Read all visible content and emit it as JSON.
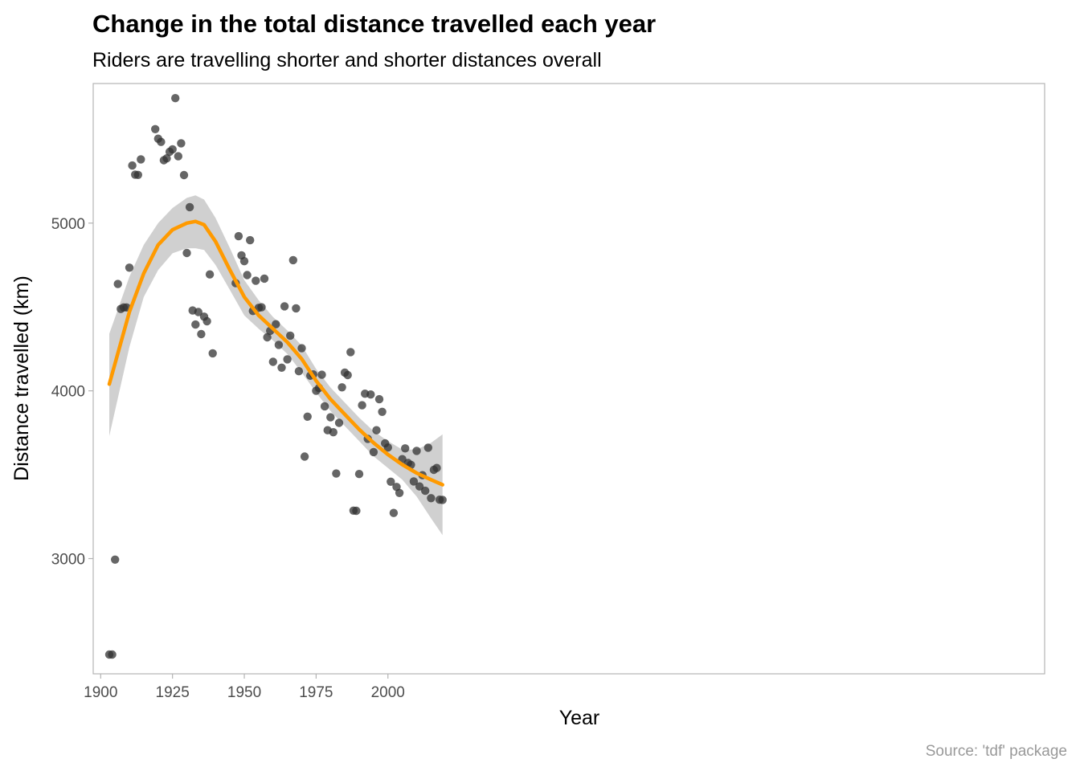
{
  "chart_data": {
    "type": "scatter",
    "title": "Change in the total distance travelled each year",
    "subtitle": "Riders are travelling shorter and shorter distances overall",
    "xlabel": "Year",
    "ylabel": "Distance travelled (km)",
    "caption": "Source: 'tdf' package",
    "xlim": [
      1897.4,
      2222.0
    ],
    "ylim": [
      2313,
      5832
    ],
    "x_ticks": [
      1900,
      1925,
      1950,
      1975,
      2000
    ],
    "y_ticks": [
      3000,
      4000,
      5000
    ],
    "grid": false,
    "legend": "none",
    "colors": {
      "points": "#333333",
      "smooth_line": "#ff9a00",
      "confidence_band": "#bebebe",
      "panel_border": "#b3b3b3"
    },
    "points": [
      {
        "x": 1903,
        "y": 2428
      },
      {
        "x": 1904,
        "y": 2428
      },
      {
        "x": 1905,
        "y": 2994
      },
      {
        "x": 1906,
        "y": 4637
      },
      {
        "x": 1907,
        "y": 4488
      },
      {
        "x": 1908,
        "y": 4497
      },
      {
        "x": 1909,
        "y": 4497
      },
      {
        "x": 1910,
        "y": 4734
      },
      {
        "x": 1911,
        "y": 5343
      },
      {
        "x": 1912,
        "y": 5289
      },
      {
        "x": 1913,
        "y": 5287
      },
      {
        "x": 1914,
        "y": 5380
      },
      {
        "x": 1919,
        "y": 5560
      },
      {
        "x": 1920,
        "y": 5503
      },
      {
        "x": 1921,
        "y": 5484
      },
      {
        "x": 1922,
        "y": 5375
      },
      {
        "x": 1923,
        "y": 5386
      },
      {
        "x": 1924,
        "y": 5425
      },
      {
        "x": 1925,
        "y": 5440
      },
      {
        "x": 1926,
        "y": 5745
      },
      {
        "x": 1927,
        "y": 5398
      },
      {
        "x": 1928,
        "y": 5476
      },
      {
        "x": 1929,
        "y": 5286
      },
      {
        "x": 1930,
        "y": 4822
      },
      {
        "x": 1931,
        "y": 5095
      },
      {
        "x": 1932,
        "y": 4479
      },
      {
        "x": 1933,
        "y": 4395
      },
      {
        "x": 1934,
        "y": 4470
      },
      {
        "x": 1935,
        "y": 4338
      },
      {
        "x": 1936,
        "y": 4442
      },
      {
        "x": 1937,
        "y": 4415
      },
      {
        "x": 1938,
        "y": 4694
      },
      {
        "x": 1939,
        "y": 4224
      },
      {
        "x": 1947,
        "y": 4642
      },
      {
        "x": 1948,
        "y": 4922
      },
      {
        "x": 1949,
        "y": 4808
      },
      {
        "x": 1950,
        "y": 4773
      },
      {
        "x": 1951,
        "y": 4690
      },
      {
        "x": 1952,
        "y": 4898
      },
      {
        "x": 1953,
        "y": 4476
      },
      {
        "x": 1954,
        "y": 4656
      },
      {
        "x": 1955,
        "y": 4495
      },
      {
        "x": 1956,
        "y": 4498
      },
      {
        "x": 1957,
        "y": 4669
      },
      {
        "x": 1958,
        "y": 4319
      },
      {
        "x": 1959,
        "y": 4358
      },
      {
        "x": 1960,
        "y": 4173
      },
      {
        "x": 1961,
        "y": 4397
      },
      {
        "x": 1962,
        "y": 4274
      },
      {
        "x": 1963,
        "y": 4138
      },
      {
        "x": 1964,
        "y": 4504
      },
      {
        "x": 1965,
        "y": 4188
      },
      {
        "x": 1966,
        "y": 4329
      },
      {
        "x": 1967,
        "y": 4779
      },
      {
        "x": 1968,
        "y": 4492
      },
      {
        "x": 1969,
        "y": 4117
      },
      {
        "x": 1970,
        "y": 4254
      },
      {
        "x": 1971,
        "y": 3608
      },
      {
        "x": 1972,
        "y": 3846
      },
      {
        "x": 1973,
        "y": 4090
      },
      {
        "x": 1974,
        "y": 4098
      },
      {
        "x": 1975,
        "y": 4000
      },
      {
        "x": 1976,
        "y": 4017
      },
      {
        "x": 1977,
        "y": 4096
      },
      {
        "x": 1978,
        "y": 3908
      },
      {
        "x": 1979,
        "y": 3765
      },
      {
        "x": 1980,
        "y": 3842
      },
      {
        "x": 1981,
        "y": 3753
      },
      {
        "x": 1982,
        "y": 3507
      },
      {
        "x": 1983,
        "y": 3809
      },
      {
        "x": 1984,
        "y": 4021
      },
      {
        "x": 1985,
        "y": 4109
      },
      {
        "x": 1986,
        "y": 4094
      },
      {
        "x": 1987,
        "y": 4231
      },
      {
        "x": 1988,
        "y": 3286
      },
      {
        "x": 1989,
        "y": 3285
      },
      {
        "x": 1990,
        "y": 3504
      },
      {
        "x": 1991,
        "y": 3914
      },
      {
        "x": 1992,
        "y": 3983
      },
      {
        "x": 1993,
        "y": 3714
      },
      {
        "x": 1994,
        "y": 3978
      },
      {
        "x": 1995,
        "y": 3635
      },
      {
        "x": 1996,
        "y": 3765
      },
      {
        "x": 1997,
        "y": 3950
      },
      {
        "x": 1998,
        "y": 3875
      },
      {
        "x": 1999,
        "y": 3687
      },
      {
        "x": 2000,
        "y": 3662
      },
      {
        "x": 2001,
        "y": 3458
      },
      {
        "x": 2002,
        "y": 3272
      },
      {
        "x": 2003,
        "y": 3427
      },
      {
        "x": 2004,
        "y": 3391
      },
      {
        "x": 2005,
        "y": 3593
      },
      {
        "x": 2006,
        "y": 3657
      },
      {
        "x": 2007,
        "y": 3570
      },
      {
        "x": 2008,
        "y": 3559
      },
      {
        "x": 2009,
        "y": 3460
      },
      {
        "x": 2010,
        "y": 3642
      },
      {
        "x": 2011,
        "y": 3430
      },
      {
        "x": 2012,
        "y": 3497
      },
      {
        "x": 2013,
        "y": 3404
      },
      {
        "x": 2014,
        "y": 3661
      },
      {
        "x": 2015,
        "y": 3360
      },
      {
        "x": 2016,
        "y": 3529
      },
      {
        "x": 2017,
        "y": 3540
      },
      {
        "x": 2018,
        "y": 3351
      },
      {
        "x": 2019,
        "y": 3350
      }
    ],
    "smooth_curve": [
      {
        "x": 1903,
        "y": 4040,
        "lower": 3730,
        "upper": 4340
      },
      {
        "x": 1910,
        "y": 4470,
        "lower": 4260,
        "upper": 4680
      },
      {
        "x": 1915,
        "y": 4700,
        "lower": 4560,
        "upper": 4870
      },
      {
        "x": 1920,
        "y": 4870,
        "lower": 4720,
        "upper": 5000
      },
      {
        "x": 1925,
        "y": 4960,
        "lower": 4820,
        "upper": 5090
      },
      {
        "x": 1930,
        "y": 5000,
        "lower": 4850,
        "upper": 5150
      },
      {
        "x": 1933,
        "y": 5010,
        "lower": 4850,
        "upper": 5165
      },
      {
        "x": 1936,
        "y": 4990,
        "lower": 4840,
        "upper": 5140
      },
      {
        "x": 1940,
        "y": 4890,
        "lower": 4750,
        "upper": 5030
      },
      {
        "x": 1945,
        "y": 4720,
        "lower": 4600,
        "upper": 4850
      },
      {
        "x": 1950,
        "y": 4560,
        "lower": 4450,
        "upper": 4660
      },
      {
        "x": 1955,
        "y": 4450,
        "lower": 4370,
        "upper": 4540
      },
      {
        "x": 1960,
        "y": 4370,
        "lower": 4300,
        "upper": 4440
      },
      {
        "x": 1965,
        "y": 4290,
        "lower": 4220,
        "upper": 4360
      },
      {
        "x": 1970,
        "y": 4190,
        "lower": 4110,
        "upper": 4270
      },
      {
        "x": 1975,
        "y": 4060,
        "lower": 3990,
        "upper": 4130
      },
      {
        "x": 1980,
        "y": 3950,
        "lower": 3880,
        "upper": 4020
      },
      {
        "x": 1985,
        "y": 3860,
        "lower": 3790,
        "upper": 3930
      },
      {
        "x": 1990,
        "y": 3770,
        "lower": 3700,
        "upper": 3840
      },
      {
        "x": 1995,
        "y": 3690,
        "lower": 3610,
        "upper": 3760
      },
      {
        "x": 2000,
        "y": 3620,
        "lower": 3540,
        "upper": 3700
      },
      {
        "x": 2005,
        "y": 3560,
        "lower": 3470,
        "upper": 3650
      },
      {
        "x": 2010,
        "y": 3510,
        "lower": 3370,
        "upper": 3650
      },
      {
        "x": 2015,
        "y": 3470,
        "lower": 3240,
        "upper": 3690
      },
      {
        "x": 2019,
        "y": 3440,
        "lower": 3140,
        "upper": 3740
      }
    ]
  }
}
